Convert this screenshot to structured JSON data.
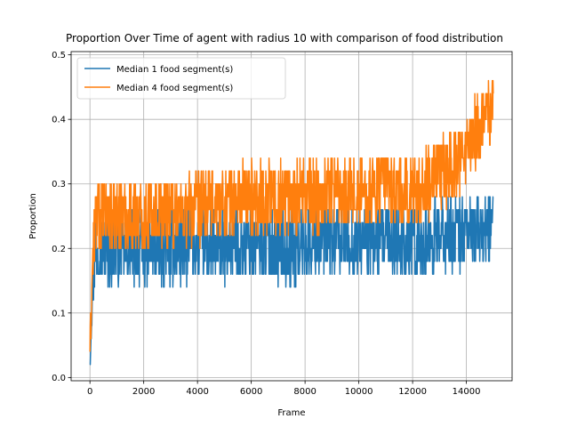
{
  "chart_data": {
    "type": "line",
    "title": "Proportion Over Time of agent with radius 10 with comparison of food distribution",
    "xlabel": "Frame",
    "ylabel": "Proportion",
    "xlim": [
      -700,
      15700
    ],
    "ylim": [
      -0.005,
      0.505
    ],
    "xticks": [
      0,
      2000,
      4000,
      6000,
      8000,
      10000,
      12000,
      14000
    ],
    "yticks": [
      0.0,
      0.1,
      0.2,
      0.3,
      0.4,
      0.5
    ],
    "xtick_labels": [
      "0",
      "2000",
      "4000",
      "6000",
      "8000",
      "10000",
      "12000",
      "14000"
    ],
    "ytick_labels": [
      "0.0",
      "0.1",
      "0.2",
      "0.3",
      "0.4",
      "0.5"
    ],
    "grid": true,
    "legend_position": "top-left",
    "series": [
      {
        "name": "Median 1 food segment(s)",
        "color": "#1f77b4",
        "x": [
          0,
          50,
          100,
          200,
          300,
          500,
          700,
          1000,
          1500,
          2000,
          2500,
          3000,
          3500,
          4000,
          4500,
          5000,
          5500,
          6000,
          6500,
          7000,
          7500,
          8000,
          8500,
          9000,
          9500,
          10000,
          10500,
          11000,
          11500,
          12000,
          12500,
          13000,
          13500,
          14000,
          14500,
          15000
        ],
        "values": [
          0.03,
          0.08,
          0.14,
          0.2,
          0.21,
          0.2,
          0.2,
          0.2,
          0.2,
          0.2,
          0.2,
          0.2,
          0.2,
          0.21,
          0.2,
          0.2,
          0.21,
          0.2,
          0.21,
          0.2,
          0.2,
          0.21,
          0.21,
          0.21,
          0.21,
          0.21,
          0.21,
          0.21,
          0.21,
          0.21,
          0.21,
          0.22,
          0.22,
          0.23,
          0.23,
          0.23
        ],
        "amplitude": [
          0.01,
          0.02,
          0.03,
          0.04,
          0.04,
          0.04,
          0.04,
          0.04,
          0.04,
          0.04,
          0.04,
          0.04,
          0.04,
          0.04,
          0.04,
          0.04,
          0.04,
          0.04,
          0.04,
          0.04,
          0.04,
          0.04,
          0.04,
          0.04,
          0.04,
          0.04,
          0.04,
          0.04,
          0.04,
          0.04,
          0.04,
          0.04,
          0.04,
          0.04,
          0.04,
          0.04
        ]
      },
      {
        "name": "Median 4 food segment(s)",
        "color": "#ff7f0e",
        "x": [
          0,
          50,
          100,
          200,
          300,
          500,
          700,
          1000,
          1500,
          2000,
          2500,
          3000,
          3500,
          4000,
          4500,
          5000,
          5500,
          6000,
          6500,
          7000,
          7500,
          8000,
          8500,
          9000,
          9500,
          10000,
          10500,
          11000,
          11500,
          12000,
          12500,
          13000,
          13500,
          14000,
          14500,
          15000
        ],
        "values": [
          0.05,
          0.1,
          0.18,
          0.24,
          0.25,
          0.25,
          0.25,
          0.25,
          0.25,
          0.25,
          0.26,
          0.26,
          0.26,
          0.26,
          0.27,
          0.27,
          0.28,
          0.28,
          0.28,
          0.28,
          0.28,
          0.28,
          0.28,
          0.29,
          0.29,
          0.29,
          0.29,
          0.3,
          0.28,
          0.29,
          0.3,
          0.31,
          0.33,
          0.35,
          0.39,
          0.42
        ],
        "amplitude": [
          0.01,
          0.02,
          0.03,
          0.04,
          0.04,
          0.04,
          0.04,
          0.04,
          0.04,
          0.04,
          0.04,
          0.04,
          0.04,
          0.04,
          0.04,
          0.04,
          0.04,
          0.04,
          0.04,
          0.04,
          0.04,
          0.04,
          0.04,
          0.04,
          0.04,
          0.04,
          0.04,
          0.04,
          0.04,
          0.04,
          0.04,
          0.04,
          0.04,
          0.04,
          0.04,
          0.04
        ]
      }
    ]
  }
}
